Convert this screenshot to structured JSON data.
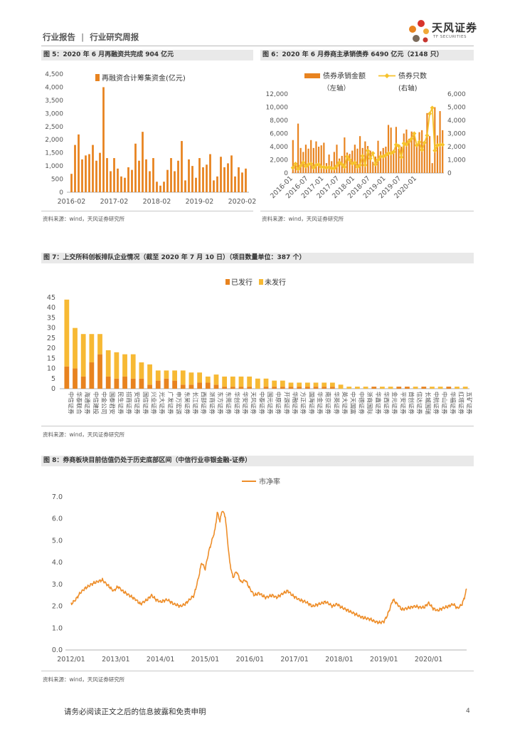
{
  "header": {
    "category": "行业报告",
    "separator": "|",
    "subcategory": "行业研究周报"
  },
  "logo": {
    "name": "天风证券",
    "sub": "TF SECURITIES"
  },
  "footer": {
    "disclaimer": "请务必阅读正文之后的信息披露和免责申明",
    "page": "4"
  },
  "colors": {
    "orange": "#e8831f",
    "yellow": "#f7b934",
    "line": "#ee8e2a",
    "gold": "#f6c22b"
  },
  "figures": [
    {
      "title": "图 5：2020 年 6 月再融资共完成 904 亿元",
      "source": "资料来源：wind，天风证券研究所"
    },
    {
      "title": "图 6：2020 年 6 月券商主承销债券 6490 亿元（2148 只）",
      "source": "资料来源：wind，天风证券研究所"
    },
    {
      "title": "图 7：上交所科创板排队企业情况（截至 2020 年 7 月 10 日）（项目数量单位：387 个）",
      "source": "资料来源：wind，天风证券研究所"
    },
    {
      "title": "图 8：券商板块目前估值仍处于历史底部区间（中信行业非银金融-证券）",
      "source": "资料来源：wind，天风证券研究所"
    }
  ],
  "chart_data": [
    {
      "type": "bar",
      "legend": [
        "再融资合计筹集资金(亿元)"
      ],
      "x_tick_labels": [
        "2016-02",
        "2017-02",
        "2018-02",
        "2019-02",
        "2020-02"
      ],
      "ylim": [
        0,
        4500
      ],
      "y_ticks": [
        "0",
        "500",
        "1,000",
        "1,500",
        "2,000",
        "2,500",
        "3,000",
        "3,500",
        "4,000",
        "4,500"
      ],
      "values": [
        700,
        1800,
        2200,
        1250,
        1400,
        1450,
        1800,
        1200,
        1500,
        4000,
        1300,
        800,
        1300,
        900,
        600,
        550,
        950,
        850,
        1850,
        1200,
        2300,
        1250,
        800,
        1300,
        400,
        250,
        400,
        850,
        1300,
        800,
        1200,
        1950,
        450,
        1250,
        1000,
        550,
        1300,
        950,
        1050,
        1450,
        450,
        600,
        1350,
        950,
        1100,
        1400,
        600,
        950,
        750,
        900
      ],
      "x_tick_index": [
        0,
        12,
        24,
        36,
        48
      ]
    },
    {
      "type": "bar+line",
      "legend": [
        "债券承销金额",
        "债券只数"
      ],
      "axis_notes": [
        "（左轴）",
        "(右轴)"
      ],
      "x_tick_labels": [
        "2016-01",
        "2016-07",
        "2017-01",
        "2017-07",
        "2018-01",
        "2018-07",
        "2019-01",
        "2019-07",
        "2020-01"
      ],
      "ylim_left": [
        0,
        12000
      ],
      "y_ticks_left": [
        "0",
        "2,000",
        "4,000",
        "6,000",
        "8,000",
        "10,000",
        "12,000"
      ],
      "ylim_right": [
        0,
        6000
      ],
      "y_ticks_right": [
        "0",
        "1,000",
        "2,000",
        "3,000",
        "4,000",
        "5,000",
        "6,000"
      ],
      "bar_values": [
        5000,
        1500,
        7500,
        3800,
        3200,
        4300,
        3700,
        5000,
        3800,
        4800,
        4000,
        4200,
        4600,
        1500,
        2800,
        1800,
        3200,
        4300,
        2200,
        2600,
        5400,
        3100,
        2900,
        3400,
        4300,
        3700,
        5600,
        3800,
        4800,
        4100,
        3400,
        1700,
        2500,
        4900,
        3300,
        3800,
        4000,
        7300,
        6900,
        3500,
        7000,
        3700,
        4000,
        6000,
        6600,
        5200,
        6300,
        5700,
        4000,
        6200,
        6500,
        4700,
        9100,
        5600,
        1500,
        10000,
        5700,
        9400,
        6500
      ],
      "line_values": [
        400,
        700,
        300,
        550,
        800,
        500,
        650,
        700,
        400,
        600,
        650,
        450,
        450,
        400,
        450,
        350,
        350,
        550,
        800,
        650,
        450,
        1250,
        1000,
        700,
        800,
        450,
        600,
        1300,
        600,
        1700,
        1100,
        1500,
        650,
        1000,
        1250,
        1250,
        1350,
        1500,
        1500,
        1600,
        2150,
        2050,
        1200,
        2250,
        2150,
        2400,
        2600,
        3000,
        2100,
        2350,
        1750,
        2300,
        2850,
        4500,
        4950,
        1700,
        2100,
        2150,
        2150
      ],
      "x_tick_index": [
        0,
        6,
        12,
        18,
        24,
        30,
        36,
        42,
        48
      ]
    },
    {
      "type": "stacked bar",
      "legend": [
        "已发行",
        "未发行"
      ],
      "ylim": [
        0,
        45
      ],
      "y_ticks": [
        "0",
        "5",
        "10",
        "15",
        "20",
        "25",
        "30",
        "35",
        "40",
        "45"
      ],
      "categories": [
        "中信证券",
        "华泰联合",
        "海通证券",
        "中信建投",
        "中金公司",
        "国泰君安",
        "民生证券",
        "招商证券",
        "安信证券",
        "国信证券",
        "兴业证券",
        "光大证券",
        "广发证券",
        "申万宏源",
        "东吴证券",
        "长江证券",
        "西部证券",
        "浙商证券",
        "东方证券",
        "东莞证券",
        "华创证券",
        "华安证券",
        "天风证券",
        "中泰证券",
        "国元证券",
        "中原证券",
        "开源证券",
        "华融证券",
        "方正证券",
        "国海证券",
        "华金证券",
        "南京证券",
        "华英证券",
        "英大证券",
        "中天国富",
        "中德证券",
        "浙商国际",
        "华鑫证券",
        "华西证券",
        "金元证券",
        "平安证券",
        "首创证券",
        "信达证券",
        "长城国瑞",
        "中航证券",
        "中山证券",
        "华福证券",
        "红塔证券",
        "五矿证券"
      ],
      "issued": [
        11,
        10,
        6,
        13,
        17,
        6,
        5,
        6,
        5,
        5,
        2,
        4,
        5,
        4,
        2,
        2,
        3,
        3,
        2,
        1,
        1,
        1,
        1,
        0,
        1,
        1,
        1,
        1,
        1,
        1,
        1,
        1,
        1,
        0,
        0,
        0,
        0,
        1,
        0,
        0,
        1,
        1,
        0,
        1,
        0,
        0,
        1,
        0,
        0
      ],
      "not_issued": [
        33,
        20,
        21,
        14,
        10,
        13,
        13,
        11,
        12,
        8,
        10,
        5,
        4,
        5,
        7,
        6,
        5,
        3,
        5,
        5,
        5,
        5,
        5,
        5,
        4,
        3,
        3,
        2,
        2,
        2,
        2,
        2,
        2,
        2,
        1,
        1,
        1,
        0,
        1,
        1,
        0,
        0,
        1,
        0,
        1,
        1,
        0,
        1,
        1
      ]
    },
    {
      "type": "line",
      "legend": [
        "市净率"
      ],
      "x_tick_labels": [
        "2012/01",
        "2013/01",
        "2014/01",
        "2015/01",
        "2016/01",
        "2017/01",
        "2018/01",
        "2019/01",
        "2020/01"
      ],
      "ylim": [
        0,
        7
      ],
      "y_ticks": [
        "0.0",
        "1.0",
        "2.0",
        "3.0",
        "4.0",
        "5.0",
        "6.0",
        "7.0"
      ],
      "x_start": 2012.0,
      "x_end": 2020.85,
      "points": [
        [
          2012.0,
          2.1
        ],
        [
          2012.1,
          2.3
        ],
        [
          2012.2,
          2.6
        ],
        [
          2012.3,
          2.8
        ],
        [
          2012.45,
          3.0
        ],
        [
          2012.55,
          3.1
        ],
        [
          2012.7,
          3.2
        ],
        [
          2012.85,
          2.9
        ],
        [
          2012.95,
          2.7
        ],
        [
          2013.05,
          2.9
        ],
        [
          2013.15,
          2.7
        ],
        [
          2013.3,
          2.5
        ],
        [
          2013.45,
          2.3
        ],
        [
          2013.55,
          2.1
        ],
        [
          2013.7,
          2.3
        ],
        [
          2013.8,
          2.5
        ],
        [
          2013.9,
          2.3
        ],
        [
          2014.0,
          2.2
        ],
        [
          2014.15,
          2.3
        ],
        [
          2014.3,
          2.1
        ],
        [
          2014.45,
          2.0
        ],
        [
          2014.55,
          2.1
        ],
        [
          2014.65,
          2.3
        ],
        [
          2014.75,
          2.5
        ],
        [
          2014.85,
          3.3
        ],
        [
          2014.92,
          4.0
        ],
        [
          2015.0,
          3.7
        ],
        [
          2015.08,
          4.5
        ],
        [
          2015.15,
          5.0
        ],
        [
          2015.22,
          5.5
        ],
        [
          2015.27,
          6.3
        ],
        [
          2015.33,
          5.9
        ],
        [
          2015.38,
          6.4
        ],
        [
          2015.45,
          6.1
        ],
        [
          2015.5,
          5.0
        ],
        [
          2015.55,
          4.0
        ],
        [
          2015.62,
          3.3
        ],
        [
          2015.7,
          3.6
        ],
        [
          2015.8,
          3.1
        ],
        [
          2015.9,
          3.2
        ],
        [
          2016.0,
          2.8
        ],
        [
          2016.1,
          2.5
        ],
        [
          2016.2,
          2.6
        ],
        [
          2016.35,
          2.4
        ],
        [
          2016.5,
          2.5
        ],
        [
          2016.6,
          2.4
        ],
        [
          2016.75,
          2.6
        ],
        [
          2016.85,
          2.7
        ],
        [
          2016.95,
          2.5
        ],
        [
          2017.1,
          2.3
        ],
        [
          2017.25,
          2.2
        ],
        [
          2017.4,
          2.0
        ],
        [
          2017.55,
          2.1
        ],
        [
          2017.7,
          2.2
        ],
        [
          2017.85,
          2.0
        ],
        [
          2017.95,
          2.1
        ],
        [
          2018.05,
          1.95
        ],
        [
          2018.2,
          1.8
        ],
        [
          2018.35,
          1.65
        ],
        [
          2018.5,
          1.5
        ],
        [
          2018.6,
          1.45
        ],
        [
          2018.7,
          1.4
        ],
        [
          2018.8,
          1.3
        ],
        [
          2018.9,
          1.25
        ],
        [
          2019.0,
          1.3
        ],
        [
          2019.08,
          1.6
        ],
        [
          2019.15,
          2.0
        ],
        [
          2019.2,
          2.3
        ],
        [
          2019.3,
          2.1
        ],
        [
          2019.4,
          1.85
        ],
        [
          2019.5,
          1.9
        ],
        [
          2019.6,
          1.95
        ],
        [
          2019.7,
          2.0
        ],
        [
          2019.8,
          1.95
        ],
        [
          2019.9,
          1.95
        ],
        [
          2020.0,
          2.15
        ],
        [
          2020.1,
          1.9
        ],
        [
          2020.2,
          1.8
        ],
        [
          2020.3,
          1.9
        ],
        [
          2020.45,
          2.0
        ],
        [
          2020.55,
          2.1
        ],
        [
          2020.65,
          1.9
        ],
        [
          2020.75,
          2.1
        ],
        [
          2020.8,
          2.4
        ],
        [
          2020.85,
          2.8
        ]
      ]
    }
  ]
}
